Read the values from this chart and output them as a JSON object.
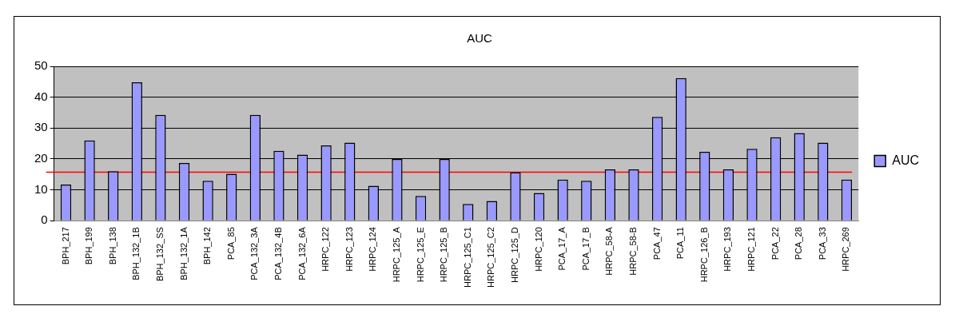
{
  "chart_data": {
    "type": "bar",
    "title": "AUC",
    "categories": [
      "BPH_217",
      "BPH_199",
      "BPH_138",
      "BPH_132_1B",
      "BPH_132_SS",
      "BPH_132_1A",
      "BPH_142",
      "PCA_85",
      "PCA_132_3A",
      "PCA_132_4B",
      "PCA_132_6A",
      "HRPC_122",
      "HRPC_123",
      "HRPC_124",
      "HRPC_125_A",
      "HRPC_125_E",
      "HRPC_125_B",
      "HRPC_125_C1",
      "HRPC_125_C2",
      "HRPC_125_D",
      "HRPC_120",
      "PCA_17_A",
      "PCA_17_B",
      "HRPC_58-A",
      "HRPC_58-B",
      "PCA_47",
      "PCA_11",
      "HRPC_126_B",
      "HRPC_193",
      "HRPC_121",
      "PCA_22",
      "PCA_28",
      "PCA_33",
      "HRPC_269"
    ],
    "series": [
      {
        "name": "AUC",
        "color": "#9999ff",
        "values": [
          11.7,
          26,
          16,
          44.8,
          34.3,
          18.7,
          12.9,
          15.2,
          34.3,
          22.6,
          21.4,
          24.4,
          25.3,
          11.3,
          20,
          8,
          20,
          5.4,
          6.4,
          15.7,
          9,
          13.3,
          12.9,
          16.6,
          16.6,
          33.6,
          46.2,
          22.3,
          16.6,
          23.3,
          27,
          28.4,
          25.3,
          13.3
        ]
      }
    ],
    "ylim": [
      0,
      50
    ],
    "yticks": [
      0,
      10,
      20,
      30,
      40,
      50
    ],
    "grid": "y",
    "legend": "right",
    "ref_lines": [
      {
        "axis": "y",
        "value": 15.7,
        "color": "#ff0000"
      }
    ]
  }
}
